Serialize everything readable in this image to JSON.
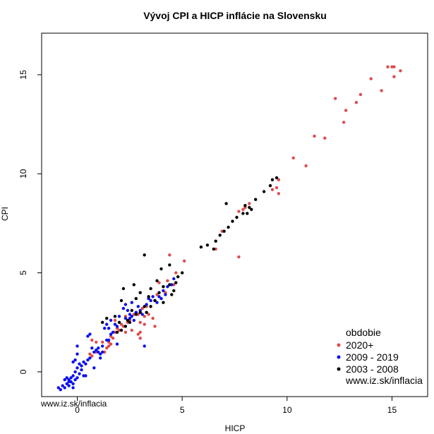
{
  "colors": {
    "2020+": "#df4a4a",
    "2009 - 2019": "#0a10ee",
    "2003 - 2008": "#000000"
  },
  "chart_data": {
    "type": "scatter",
    "title": "Vývoj CPI a HICP inflácie na Slovensku",
    "xlabel": "HICP",
    "ylabel": "CPI",
    "xlim": [
      -1.7,
      16.7
    ],
    "ylim": [
      -1.25,
      17.1
    ],
    "xticks": [
      0,
      5,
      10,
      15
    ],
    "yticks": [
      0,
      5,
      10,
      15
    ],
    "grid": false,
    "legend_position": "bottom-right",
    "legend_title": "obdobie",
    "watermark_legend": "www.iz.sk/inflacia",
    "watermark_corner": "www.iz.sk/inflacia",
    "series": [
      {
        "name": "2020+",
        "color": "#df4a4a",
        "points": [
          [
            14.8,
            15.4
          ],
          [
            15.0,
            15.4
          ],
          [
            15.1,
            15.4
          ],
          [
            15.4,
            15.2
          ],
          [
            15.1,
            14.9
          ],
          [
            14.0,
            14.8
          ],
          [
            13.5,
            14.0
          ],
          [
            14.5,
            14.2
          ],
          [
            12.3,
            13.8
          ],
          [
            13.3,
            13.6
          ],
          [
            12.8,
            13.2
          ],
          [
            12.7,
            12.6
          ],
          [
            11.3,
            11.9
          ],
          [
            11.8,
            11.8
          ],
          [
            10.3,
            10.8
          ],
          [
            10.9,
            10.4
          ],
          [
            9.6,
            9.7
          ],
          [
            9.5,
            9.3
          ],
          [
            9.6,
            9.0
          ],
          [
            9.3,
            9.2
          ],
          [
            8.2,
            8.5
          ],
          [
            8.0,
            8.3
          ],
          [
            7.9,
            8.2
          ],
          [
            7.7,
            8.1
          ],
          [
            6.9,
            7.1
          ],
          [
            6.6,
            6.2
          ],
          [
            7.7,
            5.8
          ],
          [
            4.4,
            5.9
          ],
          [
            5.1,
            5.6
          ],
          [
            4.7,
            5.0
          ],
          [
            4.3,
            4.6
          ],
          [
            3.9,
            4.5
          ],
          [
            4.2,
            4.0
          ],
          [
            3.8,
            3.9
          ],
          [
            3.5,
            3.6
          ],
          [
            3.3,
            3.3
          ],
          [
            3.1,
            3.2
          ],
          [
            2.9,
            2.9
          ],
          [
            3.0,
            2.5
          ],
          [
            2.7,
            2.9
          ],
          [
            2.5,
            2.6
          ],
          [
            2.3,
            2.8
          ],
          [
            2.2,
            2.3
          ],
          [
            2.0,
            2.1
          ],
          [
            1.8,
            2.0
          ],
          [
            1.6,
            1.8
          ],
          [
            1.5,
            1.5
          ],
          [
            1.4,
            1.2
          ],
          [
            1.2,
            1.5
          ],
          [
            0.9,
            1.0
          ],
          [
            0.6,
            0.9
          ],
          [
            0.7,
            0.8
          ],
          [
            0.9,
            1.5
          ],
          [
            0.7,
            1.6
          ],
          [
            1.8,
            2.6
          ],
          [
            2.3,
            2.0
          ],
          [
            2.6,
            2.1
          ],
          [
            3.0,
            2.0
          ],
          [
            3.2,
            2.8
          ],
          [
            3.4,
            2.9
          ],
          [
            3.6,
            2.7
          ],
          [
            3.7,
            2.3
          ],
          [
            3.2,
            2.4
          ],
          [
            2.9,
            1.9
          ],
          [
            3.0,
            1.7
          ],
          [
            1.5,
            1.3
          ],
          [
            1.3,
            1.0
          ],
          [
            1.6,
            1.4
          ],
          [
            1.7,
            1.7
          ],
          [
            1.9,
            2.2
          ],
          [
            2.1,
            2.4
          ],
          [
            2.4,
            2.5
          ],
          [
            2.8,
            3.0
          ],
          [
            4.6,
            4.4
          ]
        ]
      },
      {
        "name": "2009 - 2019",
        "color": "#0a10ee",
        "points": [
          [
            -0.9,
            -0.8
          ],
          [
            -0.8,
            -0.9
          ],
          [
            -0.7,
            -0.7
          ],
          [
            -0.6,
            -0.8
          ],
          [
            -0.5,
            -0.6
          ],
          [
            -0.4,
            -0.5
          ],
          [
            -0.6,
            -0.4
          ],
          [
            -0.3,
            -0.5
          ],
          [
            -0.2,
            -0.6
          ],
          [
            -0.5,
            -0.3
          ],
          [
            -0.3,
            -0.3
          ],
          [
            -0.4,
            -0.4
          ],
          [
            -0.2,
            -0.2
          ],
          [
            -0.1,
            -0.4
          ],
          [
            -0.4,
            -0.7
          ],
          [
            -0.2,
            -0.8
          ],
          [
            0.0,
            -0.3
          ],
          [
            -0.1,
            0.0
          ],
          [
            0.1,
            -0.1
          ],
          [
            0.0,
            0.2
          ],
          [
            -0.2,
            0.5
          ],
          [
            0.1,
            0.4
          ],
          [
            -0.1,
            0.6
          ],
          [
            0.2,
            0.1
          ],
          [
            0.3,
            -0.2
          ],
          [
            0.0,
            0.9
          ],
          [
            0.0,
            1.3
          ],
          [
            0.3,
            0.5
          ],
          [
            0.4,
            0.4
          ],
          [
            0.5,
            0.6
          ],
          [
            0.6,
            0.7
          ],
          [
            0.5,
            1.8
          ],
          [
            0.6,
            1.9
          ],
          [
            0.8,
            1.0
          ],
          [
            0.9,
            1.1
          ],
          [
            1.0,
            1.2
          ],
          [
            1.0,
            1.0
          ],
          [
            1.1,
            0.9
          ],
          [
            1.2,
            1.0
          ],
          [
            1.2,
            1.3
          ],
          [
            1.4,
            1.6
          ],
          [
            1.5,
            1.6
          ],
          [
            1.6,
            1.9
          ],
          [
            1.7,
            2.0
          ],
          [
            1.5,
            2.2
          ],
          [
            1.4,
            2.4
          ],
          [
            1.6,
            2.6
          ],
          [
            1.8,
            2.4
          ],
          [
            1.9,
            2.3
          ],
          [
            2.0,
            2.8
          ],
          [
            2.2,
            3.2
          ],
          [
            2.3,
            3.4
          ],
          [
            2.4,
            3.1
          ],
          [
            2.5,
            2.9
          ],
          [
            2.6,
            2.8
          ],
          [
            2.5,
            2.7
          ],
          [
            2.7,
            2.6
          ],
          [
            2.8,
            3.0
          ],
          [
            2.9,
            3.3
          ],
          [
            3.0,
            3.1
          ],
          [
            3.1,
            2.9
          ],
          [
            3.3,
            3.4
          ],
          [
            3.4,
            3.7
          ],
          [
            3.5,
            3.6
          ],
          [
            3.6,
            3.8
          ],
          [
            3.7,
            3.6
          ],
          [
            3.8,
            3.5
          ],
          [
            3.9,
            3.8
          ],
          [
            4.0,
            3.7
          ],
          [
            4.1,
            4.1
          ],
          [
            4.2,
            3.9
          ],
          [
            4.3,
            4.3
          ],
          [
            4.5,
            4.4
          ],
          [
            4.6,
            4.7
          ],
          [
            3.2,
            1.3
          ],
          [
            2.6,
            3.5
          ],
          [
            2.3,
            2.7
          ],
          [
            1.9,
            1.4
          ],
          [
            1.1,
            0.7
          ],
          [
            0.8,
            0.2
          ],
          [
            0.4,
            -0.2
          ],
          [
            0.2,
            0.3
          ],
          [
            0.7,
            1.2
          ],
          [
            1.3,
            2.2
          ]
        ]
      },
      {
        "name": "2003 - 2008",
        "color": "#000000",
        "points": [
          [
            9.5,
            9.8
          ],
          [
            9.3,
            9.7
          ],
          [
            9.2,
            9.4
          ],
          [
            8.9,
            9.1
          ],
          [
            8.5,
            8.7
          ],
          [
            8.3,
            8.2
          ],
          [
            8.0,
            8.4
          ],
          [
            8.1,
            8.0
          ],
          [
            8.2,
            8.3
          ],
          [
            7.9,
            8.0
          ],
          [
            7.6,
            7.8
          ],
          [
            7.4,
            7.6
          ],
          [
            7.2,
            7.3
          ],
          [
            7.0,
            7.1
          ],
          [
            7.1,
            8.5
          ],
          [
            6.8,
            6.9
          ],
          [
            6.6,
            6.6
          ],
          [
            6.5,
            6.2
          ],
          [
            6.2,
            6.4
          ],
          [
            5.9,
            6.3
          ],
          [
            3.2,
            5.9
          ],
          [
            4.4,
            5.4
          ],
          [
            4.0,
            5.2
          ],
          [
            5.0,
            5.0
          ],
          [
            4.8,
            4.8
          ],
          [
            4.7,
            4.5
          ],
          [
            4.4,
            4.4
          ],
          [
            4.1,
            4.3
          ],
          [
            3.8,
            4.6
          ],
          [
            2.7,
            4.4
          ],
          [
            3.5,
            4.2
          ],
          [
            2.2,
            4.2
          ],
          [
            3.0,
            4.0
          ],
          [
            3.4,
            3.8
          ],
          [
            3.7,
            3.6
          ],
          [
            4.1,
            3.5
          ],
          [
            4.5,
            3.9
          ],
          [
            3.2,
            3.3
          ],
          [
            3.0,
            3.0
          ],
          [
            2.8,
            2.9
          ],
          [
            2.6,
            3.1
          ],
          [
            2.5,
            2.5
          ],
          [
            2.3,
            2.3
          ],
          [
            2.1,
            2.1
          ],
          [
            1.9,
            2.0
          ],
          [
            2.0,
            2.5
          ],
          [
            2.4,
            2.6
          ],
          [
            1.8,
            2.8
          ],
          [
            1.2,
            2.5
          ],
          [
            1.4,
            2.7
          ],
          [
            2.1,
            3.6
          ],
          [
            2.8,
            3.7
          ],
          [
            3.3,
            3.0
          ],
          [
            3.5,
            3.3
          ],
          [
            3.9,
            4.0
          ],
          [
            4.6,
            4.1
          ]
        ]
      }
    ]
  }
}
